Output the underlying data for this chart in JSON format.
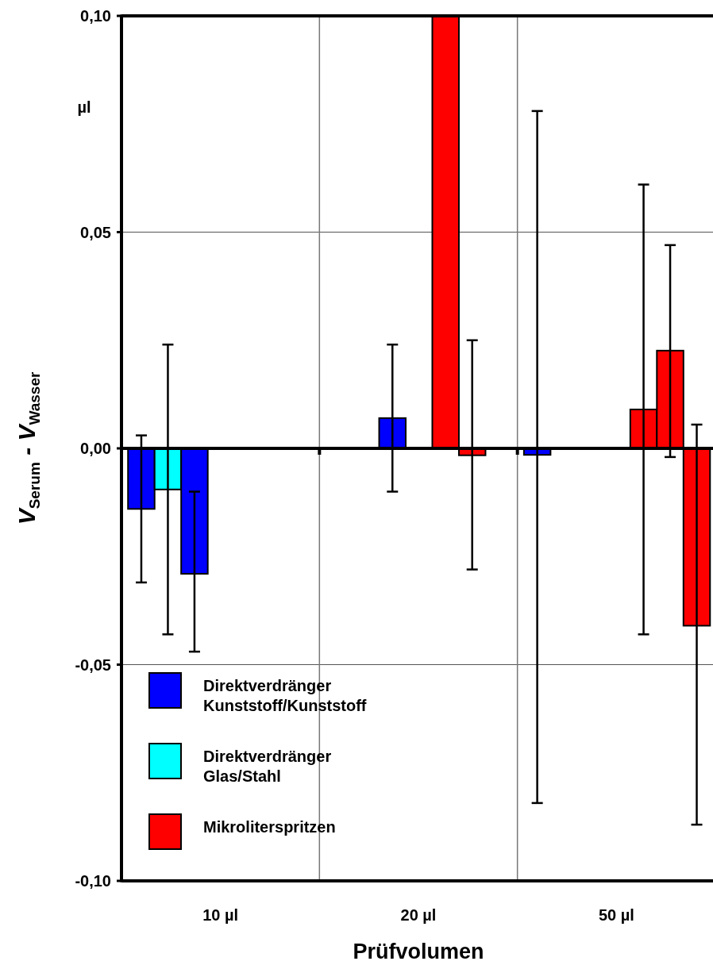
{
  "chart_data": {
    "type": "bar",
    "xlabel": "Prüfvolumen",
    "ylabel": "V$_{Serum}$ - V$_{Wasser}$",
    "annotations": [
      "µl"
    ],
    "categories": [
      "10 µl",
      "20 µl",
      "50 µl"
    ],
    "ylim": [
      -0.1,
      0.1
    ],
    "yticks": [
      {
        "value": -0.1,
        "label": "-0,10"
      },
      {
        "value": -0.05,
        "label": "-0,05"
      },
      {
        "value": 0,
        "label": "0,00"
      },
      {
        "value": 0.05,
        "label": "0,05"
      },
      {
        "value": 0.1,
        "label": "0,10"
      }
    ],
    "grid": true,
    "legend": "bottom left",
    "series": [
      {
        "name": "Direktverdränger\nKunststoff/Kunststoff",
        "color": "#0000ff",
        "values": [
          -0.014,
          null,
          -0.0015
        ],
        "errors": [
          [
            -0.031,
            0.003
          ],
          null,
          [
            -0.082,
            0.078
          ]
        ]
      },
      {
        "name": "Direktverdränger\nGlas/Stahl",
        "color": "#00ffff",
        "values": [
          -0.0095,
          null,
          null
        ],
        "errors": [
          [
            -0.043,
            0.024
          ],
          null,
          null
        ]
      },
      {
        "color": "#0000ff",
        "values": [
          -0.029,
          0.007,
          null
        ],
        "errors": [
          [
            -0.047,
            -0.01
          ],
          [
            -0.01,
            0.024
          ],
          null
        ]
      },
      {
        "values": [
          null,
          null,
          null
        ]
      },
      {
        "name": "Mikroliterspritzen",
        "color": "#ff0000",
        "values": [
          null,
          0.1,
          0.009
        ],
        "errors": [
          null,
          null,
          [
            -0.043,
            0.061
          ]
        ]
      },
      {
        "color": "#ff0000",
        "values": [
          null,
          -0.0016,
          0.0226
        ],
        "errors": [
          null,
          [
            -0.028,
            0.025
          ],
          [
            -0.002,
            0.047
          ]
        ]
      },
      {
        "color": "#ff0000",
        "values": [
          null,
          null,
          -0.041
        ],
        "errors": [
          null,
          null,
          [
            -0.087,
            0.0055
          ]
        ]
      }
    ]
  }
}
